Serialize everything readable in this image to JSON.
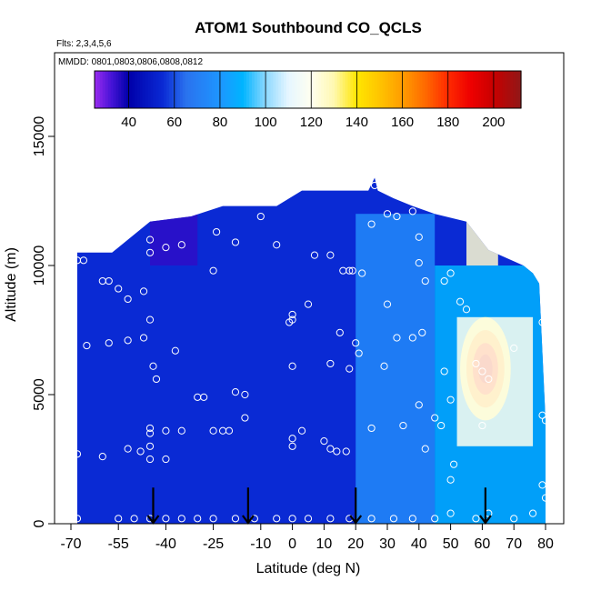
{
  "chart_data": {
    "type": "heatmap",
    "title": "ATOM1 Southbound CO_QCLS",
    "subtitle_flights": "Flts: 2,3,4,5,6",
    "subtitle_dates": "MMDD: 0801,0803,0806,0808,0812",
    "xlabel": "Latitude (deg N)",
    "ylabel": "Altitude (m)",
    "xlim": [
      -70,
      80
    ],
    "ylim": [
      0,
      16000
    ],
    "x_ticks": [
      -70,
      -55,
      -40,
      -25,
      -10,
      0,
      10,
      20,
      30,
      40,
      50,
      60,
      70,
      80
    ],
    "y_ticks": [
      0,
      5000,
      10000,
      15000
    ],
    "colorbar": {
      "range": [
        25,
        212
      ],
      "ticks": [
        40,
        60,
        80,
        100,
        120,
        140,
        160,
        180,
        200
      ],
      "stops": [
        {
          "v": 25,
          "c": "#9b2cf0"
        },
        {
          "v": 32,
          "c": "#4a14d8"
        },
        {
          "v": 40,
          "c": "#0000aa"
        },
        {
          "v": 55,
          "c": "#0a2ad4"
        },
        {
          "v": 65,
          "c": "#2a72ee"
        },
        {
          "v": 80,
          "c": "#1e96ff"
        },
        {
          "v": 90,
          "c": "#00b4ff"
        },
        {
          "v": 100,
          "c": "#8cd8ff"
        },
        {
          "v": 110,
          "c": "#e6f6ff"
        },
        {
          "v": 120,
          "c": "#fffff0"
        },
        {
          "v": 130,
          "c": "#fff8b0"
        },
        {
          "v": 140,
          "c": "#ffe600"
        },
        {
          "v": 150,
          "c": "#ffc400"
        },
        {
          "v": 160,
          "c": "#ff9c00"
        },
        {
          "v": 170,
          "c": "#ff6a00"
        },
        {
          "v": 180,
          "c": "#ff2a00"
        },
        {
          "v": 190,
          "c": "#ee0000"
        },
        {
          "v": 200,
          "c": "#c80000"
        },
        {
          "v": 212,
          "c": "#901818"
        }
      ]
    },
    "curtain_top_profile": [
      [
        -68,
        10500
      ],
      [
        -57,
        10500
      ],
      [
        -45,
        11700
      ],
      [
        -32,
        11900
      ],
      [
        -22,
        12300
      ],
      [
        -5,
        12300
      ],
      [
        3,
        12900
      ],
      [
        24,
        12900
      ],
      [
        26,
        13400
      ],
      [
        27,
        12900
      ],
      [
        32,
        12600
      ],
      [
        38,
        12300
      ],
      [
        45,
        12000
      ],
      [
        55,
        11700
      ],
      [
        62,
        10600
      ],
      [
        73,
        10000
      ],
      [
        76,
        9700
      ],
      [
        78,
        9300
      ],
      [
        80,
        4000
      ]
    ],
    "features": [
      {
        "name": "upper-troposphere-low-CO",
        "lat_range": [
          -45,
          -30
        ],
        "alt_range": [
          10000,
          12000
        ],
        "value": 35
      },
      {
        "name": "southern-background",
        "lat_range": [
          -68,
          20
        ],
        "alt_range": [
          0,
          10000
        ],
        "value": 55
      },
      {
        "name": "subtropical-transition",
        "lat_range": [
          20,
          45
        ],
        "alt_range": [
          0,
          12000
        ],
        "value": 75
      },
      {
        "name": "northern-background",
        "lat_range": [
          45,
          80
        ],
        "alt_range": [
          0,
          10000
        ],
        "value": 90
      },
      {
        "name": "upper-plume",
        "lat_range": [
          55,
          65
        ],
        "alt_range": [
          10000,
          12000
        ],
        "value": 125
      },
      {
        "name": "fire-plume",
        "center": [
          61,
          6000
        ],
        "lat_halfwidth": 8,
        "alt_halfwidth": 2000,
        "peak": 195
      },
      {
        "name": "plume-halo",
        "lat_range": [
          52,
          76
        ],
        "alt_range": [
          3000,
          8000
        ],
        "value": 120
      }
    ],
    "sample_points": [
      [
        -68,
        200
      ],
      [
        -55,
        200
      ],
      [
        -50,
        200
      ],
      [
        -45,
        200
      ],
      [
        -40,
        200
      ],
      [
        -35,
        200
      ],
      [
        -30,
        200
      ],
      [
        -25,
        200
      ],
      [
        -18,
        200
      ],
      [
        -12,
        200
      ],
      [
        -5,
        200
      ],
      [
        0,
        200
      ],
      [
        5,
        200
      ],
      [
        12,
        200
      ],
      [
        18,
        200
      ],
      [
        25,
        200
      ],
      [
        32,
        200
      ],
      [
        38,
        200
      ],
      [
        45,
        200
      ],
      [
        50,
        400
      ],
      [
        58,
        200
      ],
      [
        62,
        400
      ],
      [
        70,
        200
      ],
      [
        76,
        400
      ],
      [
        -68,
        2700
      ],
      [
        -60,
        2600
      ],
      [
        -52,
        2900
      ],
      [
        -48,
        2800
      ],
      [
        -45,
        3000
      ],
      [
        -45,
        3500
      ],
      [
        -45,
        3700
      ],
      [
        -40,
        3600
      ],
      [
        -30,
        4900
      ],
      [
        -28,
        4900
      ],
      [
        -22,
        3600
      ],
      [
        -20,
        3600
      ],
      [
        -15,
        4100
      ],
      [
        -15,
        5000
      ],
      [
        0,
        3300
      ],
      [
        0,
        3000
      ],
      [
        3,
        3600
      ],
      [
        10,
        3200
      ],
      [
        12,
        2900
      ],
      [
        14,
        2800
      ],
      [
        17,
        2800
      ],
      [
        25,
        3700
      ],
      [
        35,
        3800
      ],
      [
        42,
        2900
      ],
      [
        47,
        3800
      ],
      [
        51,
        2300
      ],
      [
        50,
        1700
      ],
      [
        -65,
        6900
      ],
      [
        -58,
        7000
      ],
      [
        -52,
        7100
      ],
      [
        -47,
        7200
      ],
      [
        -45,
        7900
      ],
      [
        -44,
        6100
      ],
      [
        -43,
        5600
      ],
      [
        -37,
        6700
      ],
      [
        -18,
        5100
      ],
      [
        0,
        6100
      ],
      [
        0,
        7900
      ],
      [
        0,
        8100
      ],
      [
        5,
        8500
      ],
      [
        12,
        6200
      ],
      [
        15,
        7400
      ],
      [
        18,
        6000
      ],
      [
        20,
        7000
      ],
      [
        21,
        6600
      ],
      [
        29,
        6100
      ],
      [
        38,
        7200
      ],
      [
        41,
        7400
      ],
      [
        45,
        4100
      ],
      [
        48,
        5900
      ],
      [
        -68,
        10200
      ],
      [
        -66,
        10200
      ],
      [
        -60,
        9400
      ],
      [
        -58,
        9400
      ],
      [
        -55,
        9100
      ],
      [
        -52,
        8700
      ],
      [
        -47,
        9000
      ],
      [
        -45,
        10500
      ],
      [
        -45,
        11000
      ],
      [
        -40,
        10700
      ],
      [
        -35,
        10800
      ],
      [
        -25,
        9800
      ],
      [
        -24,
        11300
      ],
      [
        -18,
        10900
      ],
      [
        -10,
        11900
      ],
      [
        -5,
        10800
      ],
      [
        -1,
        7800
      ],
      [
        7,
        10400
      ],
      [
        12,
        10400
      ],
      [
        16,
        9800
      ],
      [
        18,
        9800
      ],
      [
        19,
        9800
      ],
      [
        22,
        9700
      ],
      [
        25,
        11600
      ],
      [
        30,
        12000
      ],
      [
        33,
        11900
      ],
      [
        40,
        11100
      ],
      [
        42,
        9400
      ],
      [
        48,
        9400
      ],
      [
        50,
        9700
      ],
      [
        53,
        8600
      ],
      [
        55,
        8300
      ],
      [
        60,
        5900
      ],
      [
        62,
        5600
      ],
      [
        70,
        6800
      ],
      [
        78,
        9700
      ],
      [
        79,
        7800
      ],
      [
        79,
        4200
      ],
      [
        80,
        4000
      ],
      [
        79,
        1500
      ],
      [
        80,
        1000
      ],
      [
        30,
        8500
      ],
      [
        40,
        10100
      ],
      [
        26,
        13100
      ],
      [
        38,
        12100
      ],
      [
        58,
        6200
      ],
      [
        50,
        4800
      ],
      [
        60,
        3800
      ],
      [
        40,
        4600
      ],
      [
        33,
        7200
      ],
      [
        -40,
        2500
      ],
      [
        -45,
        2500
      ],
      [
        -35,
        3600
      ],
      [
        -25,
        3600
      ]
    ],
    "arrows_lat": [
      -44,
      -14,
      20,
      61
    ]
  }
}
